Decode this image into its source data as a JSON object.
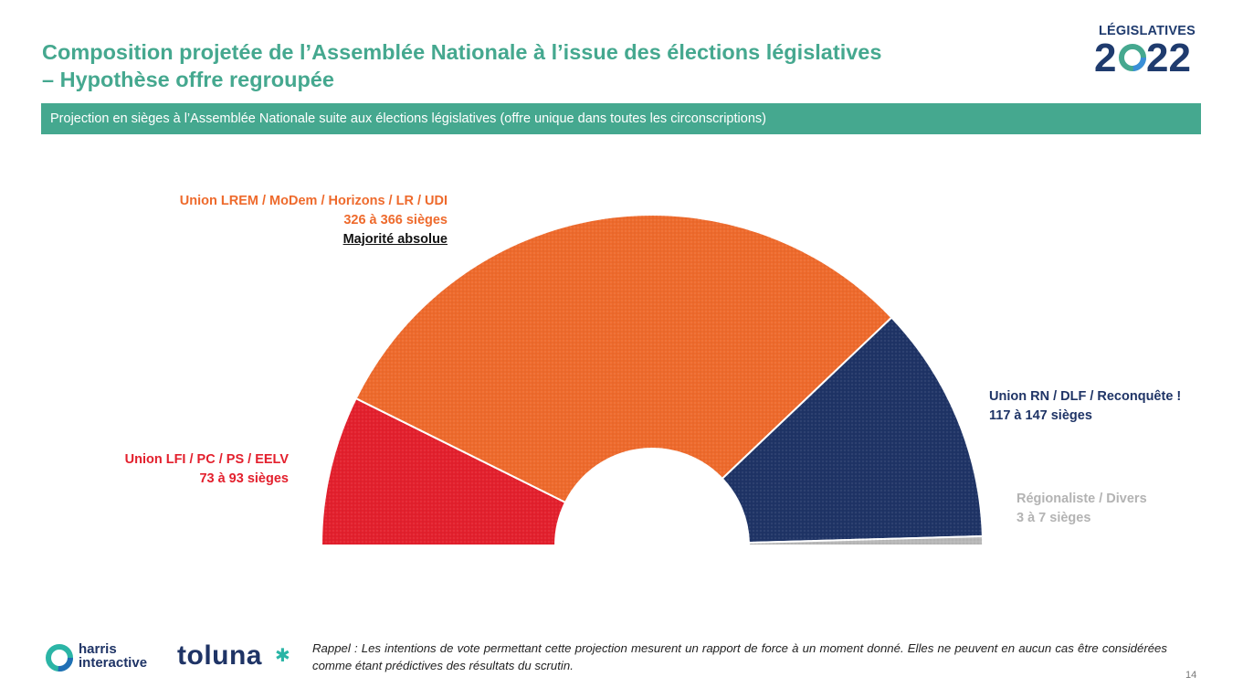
{
  "header": {
    "title_line1": "Composition projetée de l’Assemblée Nationale à l’issue des élections législatives",
    "title_line2": "– Hypothèse offre regroupée",
    "logo_top": "LÉGISLATIVES",
    "logo_year": "2022"
  },
  "banner": {
    "text": "Projection en sièges à l’Assemblée Nationale suite aux élections législatives (offre unique dans toutes les circonscriptions)"
  },
  "chart_data": {
    "type": "pie",
    "variant": "hemicycle",
    "unit": "sièges",
    "slices": [
      {
        "name": "Union LFI / PC / PS / EELV",
        "range_label": "73 à 93 sièges",
        "min": 73,
        "max": 93,
        "value": 83,
        "color": "#e3202d"
      },
      {
        "name": "Union LREM / MoDem / Horizons / LR / UDI",
        "range_label": "326 à 366 sièges",
        "min": 326,
        "max": 366,
        "value": 346,
        "color": "#ee6a2c",
        "note": "Majorité absolue"
      },
      {
        "name": "Union RN / DLF / Reconquête !",
        "range_label": "117 à 147 sièges",
        "min": 117,
        "max": 147,
        "value": 132,
        "color": "#1f3466"
      },
      {
        "name": "Régionaliste / Divers",
        "range_label": "3 à 7 sièges",
        "min": 3,
        "max": 7,
        "value": 5,
        "color": "#b8b8b8"
      }
    ]
  },
  "footer": {
    "harris_line1": "harris",
    "harris_line2": "interactive",
    "toluna": "toluna",
    "note": "Rappel : Les intentions de vote permettant cette projection mesurent un rapport de force à un moment donné. Elles ne peuvent en aucun cas être considérées comme étant prédictives des résultats du scrutin.",
    "page_number": "14"
  }
}
